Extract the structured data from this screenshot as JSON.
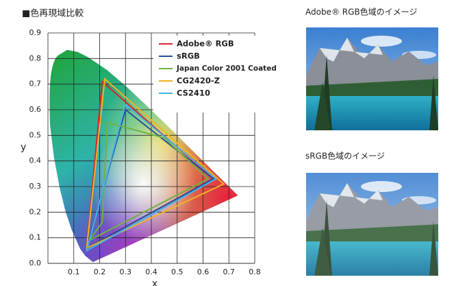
{
  "chart_data": {
    "type": "line",
    "title": "■色再現域比較",
    "xlabel": "x",
    "ylabel": "y",
    "xlim": [
      0,
      0.8
    ],
    "ylim": [
      0,
      0.9
    ],
    "xticks": [
      0.1,
      0.2,
      0.3,
      0.4,
      0.5,
      0.6,
      0.7,
      0.8
    ],
    "yticks": [
      {
        "value": 0,
        "label": "0.0"
      },
      0.1,
      0.2,
      0.3,
      0.4,
      0.5,
      0.6,
      0.7,
      0.8,
      0.9
    ],
    "grid": true,
    "legend": "upper right",
    "series": [
      {
        "name": "Adobe® RGB",
        "color": "#d9262b",
        "x": [
          0.64,
          0.21,
          0.15
        ],
        "values": [
          0.33,
          0.71,
          0.06
        ]
      },
      {
        "name": "sRGB",
        "color": "#2b4d9c",
        "x": [
          0.64,
          0.3,
          0.15
        ],
        "values": [
          0.33,
          0.6,
          0.06
        ]
      },
      {
        "name": "Japan Color 2001 Coated",
        "color": "#6db33f",
        "x": [
          0.62,
          0.45,
          0.23,
          0.21,
          0.16
        ],
        "values": [
          0.33,
          0.49,
          0.55,
          0.16,
          0.09
        ]
      },
      {
        "name": "CG2420-Z",
        "color": "#f0b323",
        "x": [
          0.68,
          0.22,
          0.15
        ],
        "values": [
          0.31,
          0.72,
          0.06
        ]
      },
      {
        "name": "CS2410",
        "color": "#3fb6e6",
        "x": [
          0.65,
          0.3,
          0.15
        ],
        "values": [
          0.33,
          0.62,
          0.05
        ]
      }
    ]
  },
  "images": [
    {
      "caption": "Adobe® RGB色域のイメージ"
    },
    {
      "caption": "sRGB色域のイメージ"
    }
  ]
}
